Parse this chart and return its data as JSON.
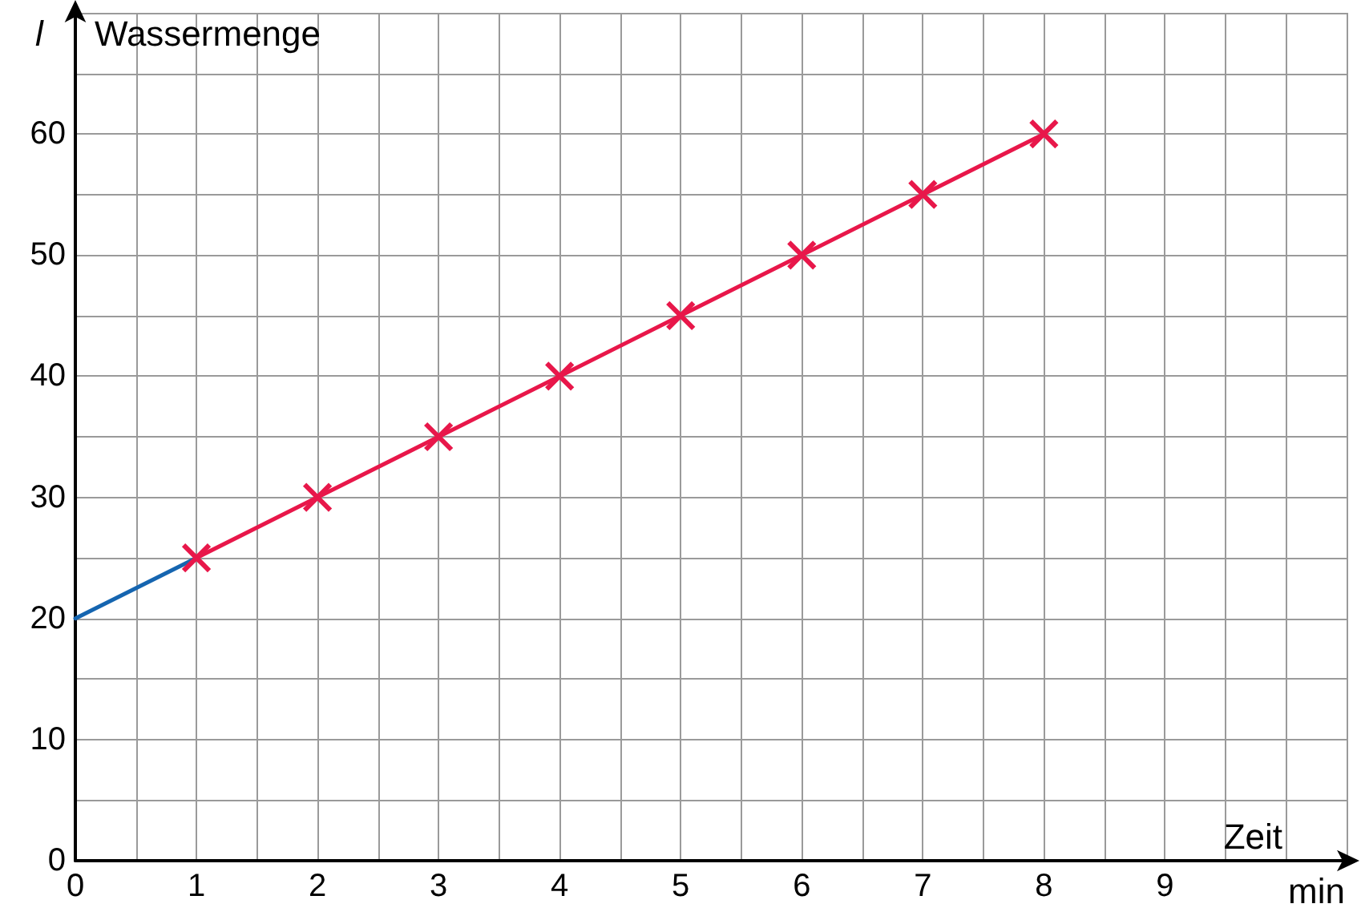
{
  "chart_data": {
    "type": "line",
    "xlabel": "Zeit",
    "ylabel": "Wassermenge",
    "annotations": [
      "l",
      "min"
    ],
    "xlim": [
      0,
      10.5
    ],
    "ylim": [
      0,
      70
    ],
    "xticks": [
      0,
      {
        "value": 0.5,
        "label": null
      },
      1,
      {
        "value": 1.5,
        "label": null
      },
      2,
      {
        "value": 2.5,
        "label": null
      },
      3,
      {
        "value": 3.5,
        "label": null
      },
      4,
      {
        "value": 4.5,
        "label": null
      },
      5,
      {
        "value": 5.5,
        "label": null
      },
      6,
      {
        "value": 6.5,
        "label": null
      },
      7,
      {
        "value": 7.5,
        "label": null
      },
      8,
      {
        "value": 8.5,
        "label": null
      },
      9,
      {
        "value": 9.5,
        "label": null
      },
      {
        "value": 10,
        "label": null
      },
      {
        "value": 10.5,
        "label": null
      }
    ],
    "yticks": [
      0,
      {
        "value": 5,
        "label": null
      },
      10,
      {
        "value": 15,
        "label": null
      },
      20,
      {
        "value": 25,
        "label": null
      },
      30,
      {
        "value": 35,
        "label": null
      },
      40,
      {
        "value": 45,
        "label": null
      },
      50,
      {
        "value": 55,
        "label": null
      },
      60,
      {
        "value": 65,
        "label": null
      },
      {
        "value": 70,
        "label": null
      }
    ],
    "grid": true,
    "series": [
      {
        "color": "#1565b0",
        "marker": "none",
        "x": [
          0,
          1
        ],
        "values": [
          20,
          25
        ]
      },
      {
        "color": "#e8174a",
        "marker": "cross",
        "x": [
          1,
          2,
          3,
          4,
          5,
          6,
          7,
          8
        ],
        "values": [
          25,
          30,
          35,
          40,
          45,
          50,
          55,
          60
        ]
      }
    ]
  }
}
